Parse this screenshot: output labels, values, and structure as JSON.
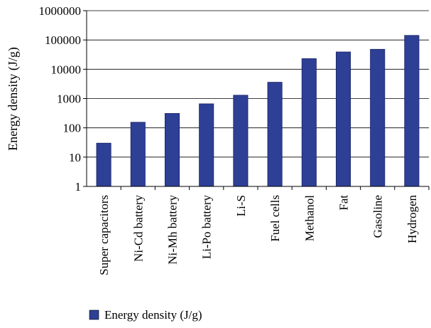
{
  "chart_data": {
    "type": "bar",
    "title": "",
    "xlabel": "",
    "ylabel": "Energy density (J/g)",
    "y_scale": "log",
    "ylim": [
      1,
      1000000
    ],
    "y_ticks": [
      "1",
      "10",
      "100",
      "1000",
      "10000",
      "100000",
      "1000000"
    ],
    "grid": "horizontal",
    "legend_position": "bottom-left",
    "categories": [
      "Super capacitors",
      "Ni-Cd battery",
      "Ni-Mh battery",
      "Li-Po battery",
      "Li-S",
      "Fuel cells",
      "Methanol",
      "Fat",
      "Gasoline",
      "Hydrogen"
    ],
    "series": [
      {
        "name": "Energy density (J/g)",
        "color": "#2e3f96",
        "values": [
          30,
          155,
          310,
          660,
          1300,
          3600,
          23000,
          39000,
          48000,
          143000
        ]
      }
    ]
  }
}
